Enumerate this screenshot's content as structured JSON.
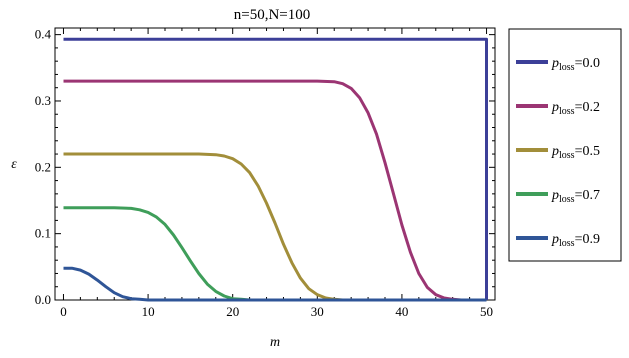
{
  "chart_data": {
    "type": "line",
    "title": "n=50,N=100",
    "xlabel": "m",
    "ylabel": "ε",
    "xlim": [
      -1,
      51
    ],
    "ylim": [
      0,
      0.41
    ],
    "xticks": [
      0,
      10,
      20,
      30,
      40,
      50
    ],
    "yticks": [
      0.0,
      0.1,
      0.2,
      0.3,
      0.4
    ],
    "ytick_labels": [
      "0.0",
      "0.1",
      "0.2",
      "0.3",
      "0.4"
    ],
    "legend_position": "right",
    "series": [
      {
        "name": "p_loss=0.0",
        "label_main": "p",
        "label_sub": "loss",
        "label_value": "=0.0",
        "color": "#3c3f98",
        "x": [
          0,
          49,
          50,
          50
        ],
        "y": [
          0.393,
          0.393,
          0.393,
          0.0
        ]
      },
      {
        "name": "p_loss=0.2",
        "label_main": "p",
        "label_sub": "loss",
        "label_value": "=0.2",
        "color": "#9b3573",
        "x": [
          0,
          30,
          32,
          33,
          34,
          35,
          36,
          37,
          38,
          39,
          40,
          41,
          42,
          43,
          44,
          45,
          46,
          47,
          48,
          50
        ],
        "y": [
          0.33,
          0.33,
          0.329,
          0.326,
          0.319,
          0.305,
          0.282,
          0.25,
          0.207,
          0.16,
          0.113,
          0.072,
          0.04,
          0.019,
          0.008,
          0.003,
          0.001,
          0.0,
          0.0,
          0.0
        ]
      },
      {
        "name": "p_loss=0.5",
        "label_main": "p",
        "label_sub": "loss",
        "label_value": "=0.5",
        "color": "#a28e3a",
        "x": [
          0,
          16,
          18,
          19,
          20,
          21,
          22,
          23,
          24,
          25,
          26,
          27,
          28,
          29,
          30,
          31,
          32,
          33,
          35,
          50
        ],
        "y": [
          0.22,
          0.22,
          0.219,
          0.217,
          0.213,
          0.205,
          0.192,
          0.172,
          0.146,
          0.116,
          0.084,
          0.056,
          0.033,
          0.017,
          0.008,
          0.003,
          0.001,
          0.0,
          0.0,
          0.0
        ]
      },
      {
        "name": "p_loss=0.7",
        "label_main": "p",
        "label_sub": "loss",
        "label_value": "=0.7",
        "color": "#3f9e5a",
        "x": [
          0,
          6,
          8,
          9,
          10,
          11,
          12,
          13,
          14,
          15,
          16,
          17,
          18,
          19,
          20,
          21,
          22,
          23,
          25,
          50
        ],
        "y": [
          0.139,
          0.139,
          0.138,
          0.136,
          0.132,
          0.125,
          0.114,
          0.098,
          0.079,
          0.059,
          0.04,
          0.024,
          0.013,
          0.006,
          0.002,
          0.001,
          0.0,
          0.0,
          0.0,
          0.0
        ]
      },
      {
        "name": "p_loss=0.9",
        "label_main": "p",
        "label_sub": "loss",
        "label_value": "=0.9",
        "color": "#2f5597",
        "x": [
          0,
          1,
          2,
          3,
          4,
          5,
          6,
          7,
          8,
          9,
          10,
          12,
          50
        ],
        "y": [
          0.048,
          0.048,
          0.045,
          0.039,
          0.03,
          0.02,
          0.011,
          0.005,
          0.002,
          0.001,
          0.0,
          0.0,
          0.0
        ]
      }
    ]
  }
}
